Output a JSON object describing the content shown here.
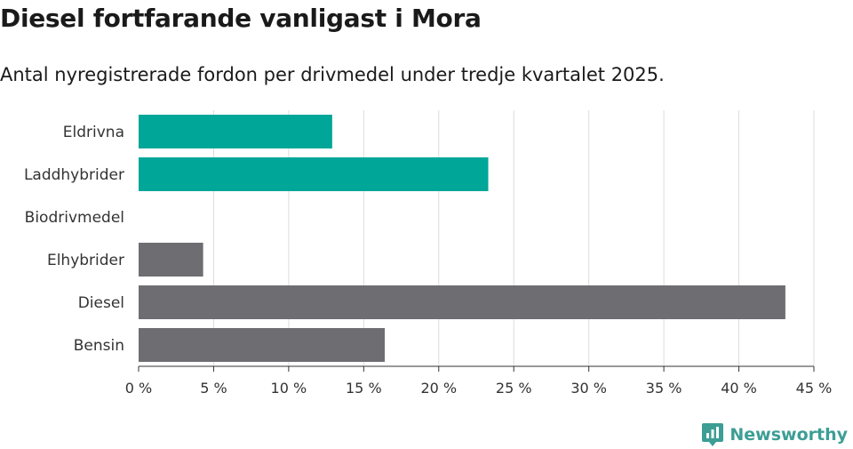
{
  "title": "Diesel fortfarande vanligast i Mora",
  "subtitle": "Antal nyregistrerade fordon per drivmedel under tredje kvartalet 2025.",
  "brand": {
    "name": "Newsworthy"
  },
  "colors": {
    "highlight": "#00a698",
    "default": "#6d6d72",
    "grid": "#dddddd",
    "axis": "#333333",
    "brand": "#3c9e95"
  },
  "chart_data": {
    "type": "bar",
    "orientation": "horizontal",
    "categories": [
      "Eldrivna",
      "Laddhybrider",
      "Biodrivmedel",
      "Elhybrider",
      "Diesel",
      "Bensin"
    ],
    "values": [
      12.9,
      23.3,
      0,
      4.3,
      43.1,
      16.4
    ],
    "bar_colors": [
      "highlight",
      "highlight",
      "default",
      "default",
      "default",
      "default"
    ],
    "unit": "%",
    "xlim": [
      0,
      45
    ],
    "xticks": [
      0,
      5,
      10,
      15,
      20,
      25,
      30,
      35,
      40,
      45
    ],
    "xtick_labels": [
      "0 %",
      "5 %",
      "10 %",
      "15 %",
      "20 %",
      "25 %",
      "30 %",
      "35 %",
      "40 %",
      "45 %"
    ],
    "grid": true
  }
}
